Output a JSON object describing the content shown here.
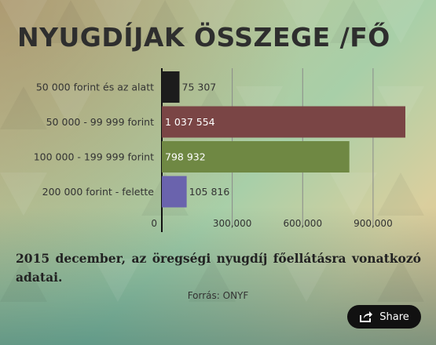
{
  "title": "NYUGDÍJAK ÖSSZEGE /FŐ",
  "chart_data": {
    "type": "bar",
    "orientation": "horizontal",
    "categories": [
      "50 000 forint és az alatt",
      "50 000 - 99 999 forint",
      "100 000 - 199 999 forint",
      "200 000 forint - felette"
    ],
    "values": [
      75307,
      1037554,
      798932,
      105816
    ],
    "value_labels": [
      "75 307",
      "1 037 554",
      "798 932",
      "105 816"
    ],
    "colors": [
      "#1c1c1c",
      "#7a4545",
      "#6f8843",
      "#6a63ad"
    ],
    "x_ticks": [
      0,
      300000,
      600000,
      900000
    ],
    "x_tick_labels": [
      "0",
      "300,000",
      "600,000",
      "900,000"
    ],
    "xlim": [
      0,
      1037554
    ],
    "grid": "vertical"
  },
  "caption": "2015 december, az öregségi nyugdíj főellátásra vonatkozó adatai.",
  "source": "Forrás: ONYF",
  "share_button": {
    "label": "Share",
    "icon": "share-icon"
  }
}
